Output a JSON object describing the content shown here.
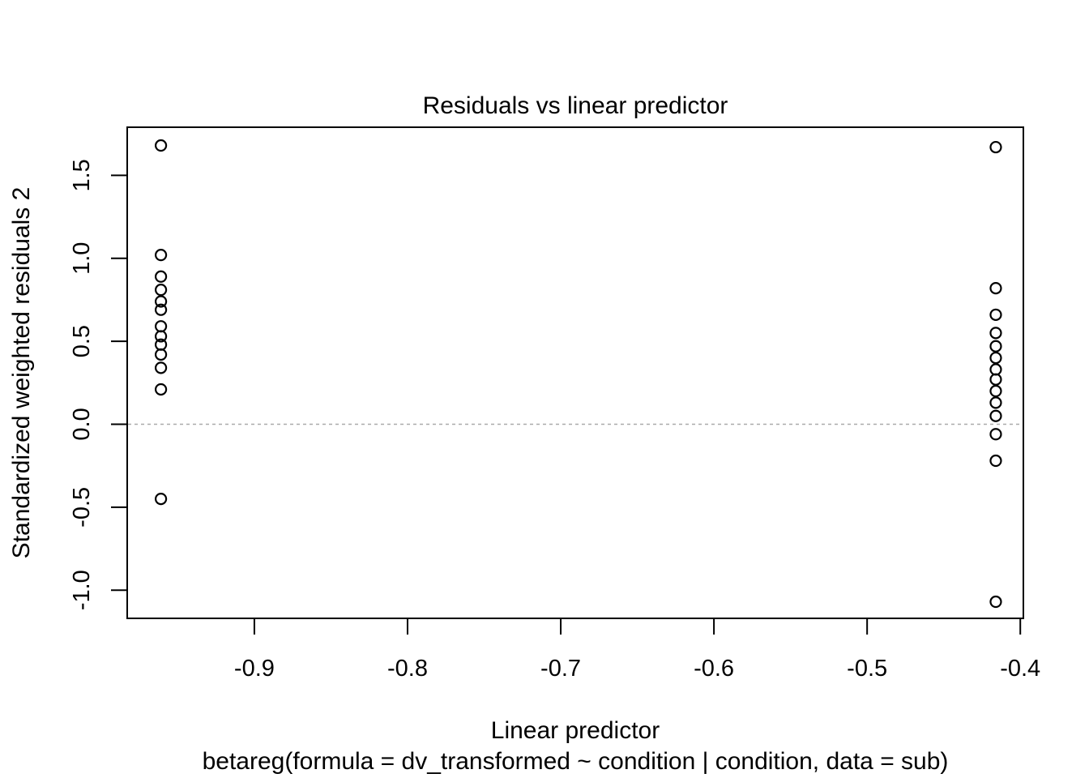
{
  "chart_data": {
    "type": "scatter",
    "title": "Residuals vs linear predictor",
    "xlabel": "Linear predictor",
    "ylabel": "Standardized weighted residuals 2",
    "subtitle": "betareg(formula = dv_transformed ~ condition | condition, data = sub)",
    "xlim": [
      -0.983,
      -0.398
    ],
    "ylim": [
      -1.17,
      1.79
    ],
    "x_ticks": [
      -0.9,
      -0.8,
      -0.7,
      -0.6,
      -0.5,
      -0.4
    ],
    "x_tick_labels": [
      "-0.9",
      "-0.8",
      "-0.7",
      "-0.6",
      "-0.5",
      "-0.4"
    ],
    "y_ticks": [
      -1.0,
      -0.5,
      0.0,
      0.5,
      1.0,
      1.5
    ],
    "y_tick_labels": [
      "-1.0",
      "-0.5",
      "0.0",
      "0.5",
      "1.0",
      "1.5"
    ],
    "reference_line": {
      "y": 0,
      "style": "dotted",
      "color": "#aaaaaa"
    },
    "grid": false,
    "marker": "open-circle",
    "series": [
      {
        "points": [
          {
            "x": -0.961,
            "y": 1.68
          },
          {
            "x": -0.961,
            "y": 1.02
          },
          {
            "x": -0.961,
            "y": 0.89
          },
          {
            "x": -0.961,
            "y": 0.81
          },
          {
            "x": -0.961,
            "y": 0.74
          },
          {
            "x": -0.961,
            "y": 0.69
          },
          {
            "x": -0.961,
            "y": 0.59
          },
          {
            "x": -0.961,
            "y": 0.53
          },
          {
            "x": -0.961,
            "y": 0.48
          },
          {
            "x": -0.961,
            "y": 0.42
          },
          {
            "x": -0.961,
            "y": 0.34
          },
          {
            "x": -0.961,
            "y": 0.21
          },
          {
            "x": -0.961,
            "y": -0.45
          },
          {
            "x": -0.416,
            "y": 1.67
          },
          {
            "x": -0.416,
            "y": 0.82
          },
          {
            "x": -0.416,
            "y": 0.66
          },
          {
            "x": -0.416,
            "y": 0.55
          },
          {
            "x": -0.416,
            "y": 0.47
          },
          {
            "x": -0.416,
            "y": 0.4
          },
          {
            "x": -0.416,
            "y": 0.33
          },
          {
            "x": -0.416,
            "y": 0.27
          },
          {
            "x": -0.416,
            "y": 0.2
          },
          {
            "x": -0.416,
            "y": 0.13
          },
          {
            "x": -0.416,
            "y": 0.05
          },
          {
            "x": -0.416,
            "y": -0.06
          },
          {
            "x": -0.416,
            "y": -0.22
          },
          {
            "x": -0.416,
            "y": -1.07
          }
        ]
      }
    ]
  }
}
